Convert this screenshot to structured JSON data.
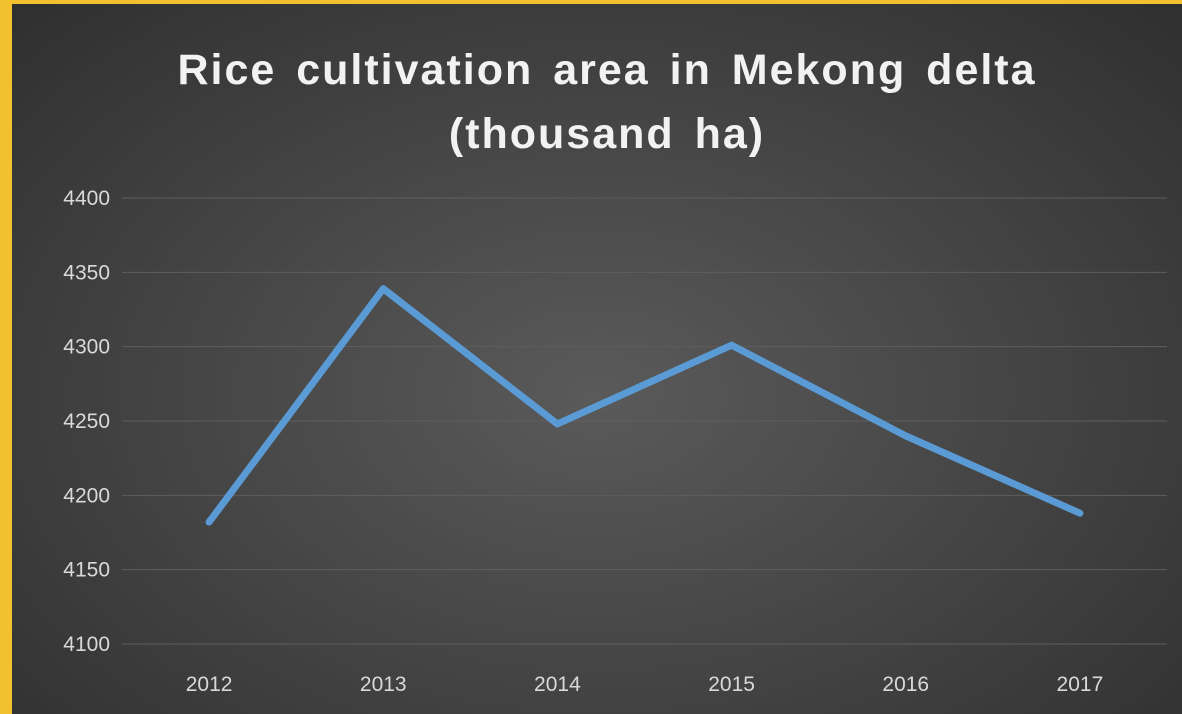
{
  "chart_data": {
    "type": "line",
    "title": "Rice cultivation area in Mekong delta (thousand ha)",
    "categories": [
      "2012",
      "2013",
      "2014",
      "2015",
      "2016",
      "2017"
    ],
    "series": [
      {
        "values": [
          4182,
          4339,
          4248,
          4301,
          4240,
          4188
        ]
      }
    ],
    "ylim": [
      4100,
      4400
    ],
    "yticks": [
      4100,
      4150,
      4200,
      4250,
      4300,
      4350,
      4400
    ],
    "grid": true,
    "legend": "none"
  },
  "colors": {
    "line": "#5b9bd5",
    "grid": "#5e5e5e",
    "border": "#f2c12e"
  }
}
